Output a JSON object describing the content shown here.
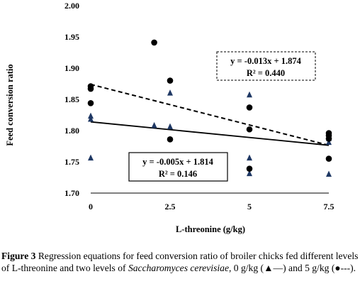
{
  "chart_data": {
    "type": "scatter",
    "xlabel": "L-threonine (g/kg)",
    "ylabel": "Feed conversion ratio",
    "xlim": [
      0,
      7.5
    ],
    "ylim": [
      1.7,
      2.0
    ],
    "x_ticks": [
      "0",
      "2.5",
      "5",
      "7.5"
    ],
    "y_ticks": [
      "1.70",
      "1.75",
      "1.80",
      "1.85",
      "1.90",
      "1.95",
      "2.00"
    ],
    "grid": false,
    "series": [
      {
        "marker": "triangle",
        "line_style": "solid",
        "points": [
          [
            0,
            1.756
          ],
          [
            0,
            1.818
          ],
          [
            0,
            1.823
          ],
          [
            2,
            1.808
          ],
          [
            2.5,
            1.806
          ],
          [
            2.5,
            1.86
          ],
          [
            5,
            1.731
          ],
          [
            5,
            1.756
          ],
          [
            5,
            1.857
          ],
          [
            7.5,
            1.73
          ],
          [
            7.5,
            1.781
          ],
          [
            7.5,
            1.787
          ],
          [
            7.5,
            1.792
          ]
        ],
        "fit": {
          "slope": -0.005,
          "intercept": 1.814
        },
        "equation": "y = -0.005x + 1.814",
        "r2": "R² = 0.146"
      },
      {
        "marker": "circle",
        "line_style": "dashed",
        "points": [
          [
            0,
            1.844
          ],
          [
            0,
            1.867
          ],
          [
            0,
            1.871
          ],
          [
            2,
            1.941
          ],
          [
            2.5,
            1.786
          ],
          [
            2.5,
            1.88
          ],
          [
            5,
            1.739
          ],
          [
            5,
            1.802
          ],
          [
            5,
            1.837
          ],
          [
            7.5,
            1.755
          ],
          [
            7.5,
            1.787
          ],
          [
            7.5,
            1.792
          ],
          [
            7.5,
            1.796
          ]
        ],
        "fit": {
          "slope": -0.013,
          "intercept": 1.874
        },
        "equation": "y = -0.013x + 1.874",
        "r2": "R² = 0.440"
      }
    ]
  },
  "caption": {
    "label": "Figure 3",
    "text_before_italic": " Regression equations for feed conversion ratio of broiler chicks fed different levels of L-threonine and two levels of ",
    "italic": "Saccharomyces cerevisiae",
    "text_after": ", 0 g/kg (▲—) and 5 g/kg (●---)."
  },
  "colors": {
    "triangle": "#1f3864",
    "circle": "#000000",
    "axis": "#000000"
  }
}
